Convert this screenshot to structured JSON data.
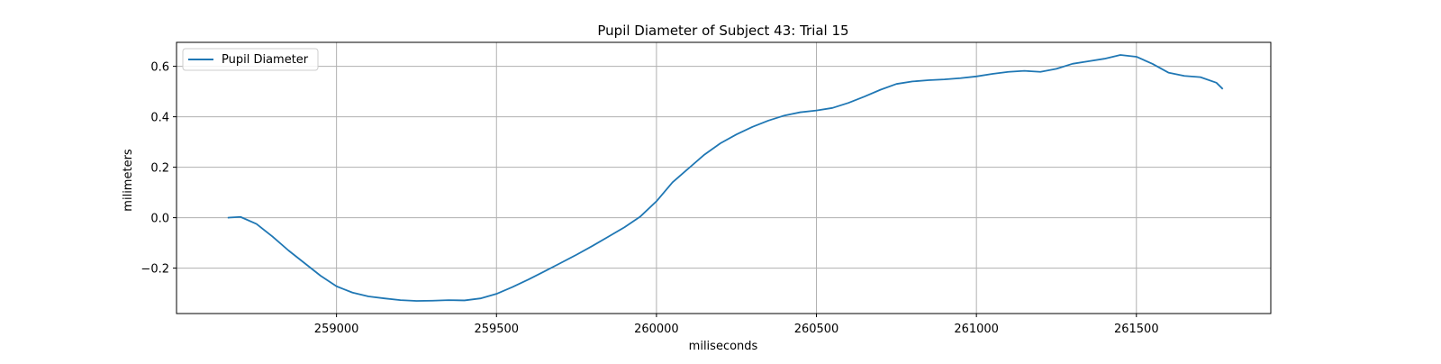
{
  "chart_data": {
    "type": "line",
    "title": "Pupil Diameter of Subject 43: Trial 15",
    "xlabel": "miliseconds",
    "ylabel": "milimeters",
    "xlim": [
      258500,
      261920
    ],
    "ylim": [
      -0.38,
      0.695
    ],
    "x_ticks": [
      259000,
      259500,
      260000,
      260500,
      261000,
      261500
    ],
    "x_tick_labels": [
      "259000",
      "259500",
      "260000",
      "260500",
      "261000",
      "261500"
    ],
    "y_ticks": [
      -0.2,
      0.0,
      0.2,
      0.4,
      0.6
    ],
    "y_tick_labels": [
      "−0.2",
      "0.0",
      "0.2",
      "0.4",
      "0.6"
    ],
    "grid": true,
    "legend_position": "top-left",
    "series": [
      {
        "name": "Pupil Diameter",
        "color": "#1f77b4",
        "x": [
          258660,
          258700,
          258750,
          258800,
          258850,
          258900,
          258950,
          259000,
          259050,
          259100,
          259150,
          259200,
          259250,
          259300,
          259350,
          259400,
          259450,
          259500,
          259550,
          259600,
          259650,
          259700,
          259750,
          259800,
          259850,
          259900,
          259950,
          260000,
          260050,
          260100,
          260150,
          260200,
          260250,
          260300,
          260350,
          260400,
          260450,
          260500,
          260550,
          260600,
          260650,
          260700,
          260750,
          260800,
          260850,
          260900,
          260950,
          261000,
          261050,
          261100,
          261150,
          261200,
          261250,
          261300,
          261350,
          261400,
          261450,
          261500,
          261550,
          261600,
          261650,
          261700,
          261750,
          261770
        ],
        "values": [
          0.0,
          0.003,
          -0.025,
          -0.075,
          -0.13,
          -0.18,
          -0.23,
          -0.272,
          -0.297,
          -0.312,
          -0.32,
          -0.327,
          -0.33,
          -0.329,
          -0.327,
          -0.328,
          -0.32,
          -0.302,
          -0.275,
          -0.245,
          -0.213,
          -0.18,
          -0.147,
          -0.112,
          -0.075,
          -0.038,
          0.005,
          0.065,
          0.14,
          0.195,
          0.25,
          0.295,
          0.33,
          0.36,
          0.385,
          0.405,
          0.418,
          0.425,
          0.435,
          0.455,
          0.48,
          0.507,
          0.53,
          0.54,
          0.545,
          0.548,
          0.553,
          0.56,
          0.57,
          0.578,
          0.582,
          0.578,
          0.59,
          0.61,
          0.62,
          0.63,
          0.645,
          0.638,
          0.61,
          0.575,
          0.562,
          0.557,
          0.535,
          0.51
        ]
      }
    ]
  }
}
